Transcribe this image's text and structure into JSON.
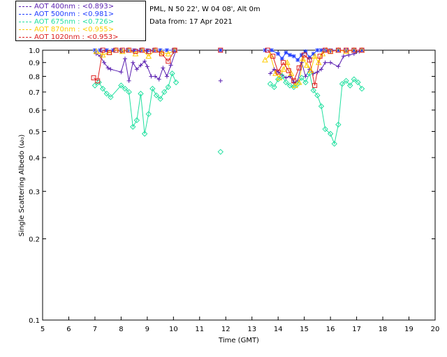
{
  "header": {
    "site": "PML, N 50 22', W 04 08', Alt 0m",
    "date_text": "Data from: 17 Apr 2021"
  },
  "legend": [
    {
      "label": "AOT  400nm : <0.893>",
      "color": "#5a1fb0"
    },
    {
      "label": "AOT  500nm : <0.981>",
      "color": "#1f3cff"
    },
    {
      "label": "AOT  675nm : <0.726>",
      "color": "#22e0a0"
    },
    {
      "label": "AOT  870nm : <0.955>",
      "color": "#ffcc00"
    },
    {
      "label": "AOT 1020nm : <0.953>",
      "color": "#dd1f1f"
    }
  ],
  "chart_data": {
    "type": "scatter",
    "title": "",
    "xlabel": "Time (GMT)",
    "ylabel": "Single Scattering Albedo (ω₀)",
    "xlim": [
      5,
      20
    ],
    "ylim": [
      0.1,
      1.0
    ],
    "yscale": "log",
    "xticks": [
      5,
      6,
      7,
      8,
      9,
      10,
      11,
      12,
      13,
      14,
      15,
      16,
      17,
      18,
      19,
      20
    ],
    "yticks": [
      0.1,
      0.2,
      0.3,
      0.4,
      0.5,
      0.6,
      0.7,
      0.8,
      0.9,
      1.0
    ],
    "ytick_labels": [
      "0.1",
      "0.2",
      "0.3",
      "0.4",
      "0.5",
      "0.6",
      "0.7",
      "0.8",
      "0.9",
      "1.0"
    ],
    "series": [
      {
        "name": "AOT 400nm",
        "color": "#5a1fb0",
        "marker": "plus",
        "x": [
          7.05,
          7.2,
          7.35,
          7.5,
          7.6,
          8.0,
          8.15,
          8.3,
          8.45,
          8.6,
          8.75,
          8.9,
          9.0,
          9.15,
          9.3,
          9.45,
          9.6,
          9.75,
          9.9,
          10.1,
          11.8,
          13.7,
          13.85,
          14.0,
          14.15,
          14.3,
          14.45,
          14.6,
          14.75,
          14.9,
          15.05,
          15.2,
          15.35,
          15.5,
          15.65,
          15.8,
          16.0,
          16.3,
          16.5,
          16.7,
          16.9,
          17.1
        ],
        "y": [
          0.97,
          0.95,
          0.9,
          0.86,
          0.85,
          0.83,
          0.93,
          0.77,
          0.9,
          0.85,
          0.88,
          0.91,
          0.87,
          0.8,
          0.8,
          0.78,
          0.86,
          0.8,
          0.88,
          1.0,
          0.77,
          0.82,
          0.85,
          0.83,
          0.81,
          0.79,
          0.8,
          0.76,
          0.77,
          0.9,
          0.8,
          0.85,
          0.82,
          0.83,
          0.85,
          0.9,
          0.9,
          0.87,
          0.95,
          0.96,
          0.97,
          0.99
        ]
      },
      {
        "name": "AOT 500nm",
        "color": "#1f3cff",
        "marker": "star",
        "x": [
          7.0,
          7.2,
          7.45,
          7.7,
          8.0,
          8.25,
          8.5,
          8.75,
          9.0,
          9.25,
          9.5,
          9.75,
          10.0,
          11.8,
          13.5,
          13.75,
          14.0,
          14.15,
          14.3,
          14.45,
          14.6,
          14.75,
          14.9,
          15.05,
          15.2,
          15.35,
          15.5,
          15.65,
          15.8,
          16.0,
          16.3,
          16.6,
          16.9,
          17.2
        ],
        "y": [
          1.0,
          1.0,
          1.0,
          1.0,
          1.0,
          1.0,
          1.0,
          1.0,
          1.0,
          1.0,
          1.0,
          1.0,
          1.0,
          1.0,
          1.0,
          1.0,
          0.97,
          0.93,
          0.98,
          0.96,
          0.95,
          0.92,
          0.96,
          0.99,
          0.94,
          0.97,
          1.0,
          1.0,
          1.0,
          1.0,
          1.0,
          1.0,
          1.0,
          1.0
        ]
      },
      {
        "name": "AOT 675nm",
        "color": "#22e0a0",
        "marker": "diamond",
        "x": [
          7.0,
          7.15,
          7.3,
          7.45,
          7.6,
          8.0,
          8.15,
          8.3,
          8.45,
          8.6,
          8.75,
          8.9,
          9.05,
          9.2,
          9.35,
          9.5,
          9.65,
          9.8,
          9.95,
          10.1,
          11.8,
          13.7,
          13.85,
          14.0,
          14.15,
          14.3,
          14.45,
          14.6,
          14.75,
          14.9,
          15.05,
          15.2,
          15.35,
          15.5,
          15.65,
          15.8,
          16.0,
          16.15,
          16.3,
          16.45,
          16.6,
          16.75,
          16.9,
          17.05,
          17.2
        ],
        "y": [
          0.74,
          0.76,
          0.72,
          0.69,
          0.67,
          0.74,
          0.72,
          0.7,
          0.52,
          0.55,
          0.69,
          0.49,
          0.58,
          0.72,
          0.68,
          0.66,
          0.7,
          0.73,
          0.82,
          0.76,
          0.42,
          0.75,
          0.73,
          0.78,
          0.8,
          0.76,
          0.74,
          0.73,
          0.75,
          0.79,
          0.76,
          0.82,
          0.71,
          0.68,
          0.62,
          0.51,
          0.49,
          0.45,
          0.53,
          0.75,
          0.77,
          0.74,
          0.78,
          0.76,
          0.72
        ]
      },
      {
        "name": "AOT 870nm",
        "color": "#ffcc00",
        "marker": "triangle",
        "x": [
          7.05,
          7.3,
          7.55,
          7.8,
          8.05,
          8.3,
          8.55,
          8.8,
          9.05,
          9.3,
          9.55,
          9.8,
          10.05,
          13.5,
          13.7,
          13.9,
          14.05,
          14.2,
          14.35,
          14.5,
          14.65,
          14.8,
          14.95,
          15.1,
          15.25,
          15.4,
          15.55,
          15.7,
          15.85,
          16.0,
          16.3,
          16.6,
          16.9,
          17.2
        ],
        "y": [
          0.99,
          0.96,
          0.98,
          1.0,
          0.99,
          1.0,
          0.97,
          1.0,
          0.95,
          1.0,
          0.98,
          0.97,
          1.0,
          0.92,
          0.96,
          0.82,
          0.79,
          0.85,
          0.9,
          0.82,
          0.74,
          0.76,
          0.93,
          0.88,
          0.84,
          0.95,
          0.9,
          0.97,
          1.0,
          0.99,
          1.0,
          0.99,
          1.0,
          1.0
        ]
      },
      {
        "name": "AOT 1020nm",
        "color": "#dd1f1f",
        "marker": "square",
        "x": [
          6.95,
          7.1,
          7.3,
          7.55,
          7.8,
          8.05,
          8.3,
          8.55,
          8.8,
          9.05,
          9.3,
          9.55,
          9.8,
          10.05,
          11.8,
          13.6,
          13.8,
          14.0,
          14.2,
          14.4,
          14.6,
          14.8,
          15.0,
          15.2,
          15.4,
          15.6,
          15.8,
          16.0,
          16.3,
          16.6,
          16.9,
          17.2
        ],
        "y": [
          0.79,
          0.77,
          1.0,
          0.98,
          1.0,
          1.0,
          1.0,
          0.99,
          1.0,
          0.99,
          1.0,
          0.97,
          0.91,
          1.0,
          1.0,
          1.0,
          0.95,
          0.83,
          0.9,
          0.84,
          0.77,
          0.86,
          0.96,
          0.92,
          0.74,
          0.95,
          1.0,
          0.99,
          1.0,
          1.0,
          1.0,
          1.0
        ]
      }
    ]
  }
}
